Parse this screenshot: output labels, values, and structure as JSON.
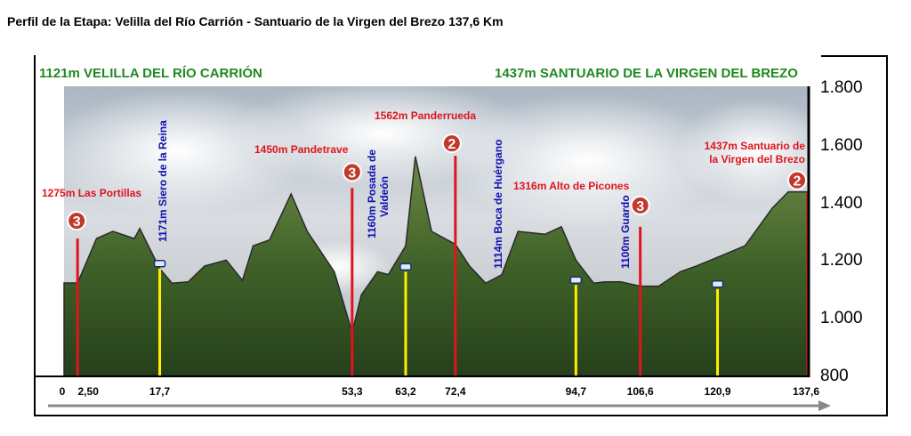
{
  "title": "Perfil de la Etapa: Velilla del Río Carrión - Santuario de la Virgen del Brezo  137,6 Km",
  "start_label": "1121m VELILLA DEL RÍO CARRIÓN",
  "end_label": "1437m SANTUARIO DE LA VIRGEN DEL BREZO",
  "colors": {
    "header_green": "#1f8a1f",
    "climb_red": "#e0141e",
    "place_yellow": "#ffee00",
    "label_red": "#e0141e",
    "label_blue": "#1010b0",
    "badge_red": "#c0392b"
  },
  "chart_data": {
    "type": "area",
    "title": "Perfil de la Etapa: Velilla del Río Carrión - Santuario de la Virgen del Brezo  137,6 Km",
    "xlabel": "",
    "ylabel": "",
    "xlim": [
      0,
      137.6
    ],
    "ylim": [
      800,
      1800
    ],
    "grid": false,
    "x_tick_labels": [
      "0",
      "2,50",
      "17,7",
      "53,3",
      "63,2",
      "72,4",
      "94,7",
      "106,6",
      "120,9",
      "137,6"
    ],
    "x_tick_values": [
      0,
      2.5,
      17.7,
      53.3,
      63.2,
      72.4,
      94.7,
      106.6,
      120.9,
      137.6
    ],
    "y_tick_labels": [
      "1.800",
      "1.600",
      "1.400",
      "1.200",
      "1.000",
      "800"
    ],
    "y_tick_values": [
      1800,
      1600,
      1400,
      1200,
      1000,
      800
    ],
    "profile": {
      "x": [
        0,
        2.5,
        6,
        9,
        13,
        14,
        17.7,
        20,
        23,
        26,
        30,
        33,
        35,
        38,
        42,
        45,
        50,
        53.3,
        55,
        58,
        60,
        63.2,
        65,
        68,
        72.4,
        75,
        78,
        81,
        84,
        89,
        92,
        94.7,
        98,
        100,
        103,
        106.6,
        110,
        114,
        117,
        120.9,
        126,
        131,
        134,
        137.6
      ],
      "elevation": [
        1121,
        1121,
        1275,
        1300,
        1275,
        1310,
        1171,
        1120,
        1125,
        1180,
        1200,
        1130,
        1250,
        1270,
        1430,
        1300,
        1160,
        950,
        1080,
        1160,
        1150,
        1250,
        1560,
        1300,
        1255,
        1180,
        1120,
        1150,
        1300,
        1290,
        1316,
        1200,
        1120,
        1125,
        1125,
        1110,
        1110,
        1160,
        1180,
        1210,
        1250,
        1380,
        1437,
        1437
      ]
    },
    "markers": [
      {
        "label": "1275m Las Portillas",
        "x": 2.5,
        "elevation": 1275,
        "kind": "climb",
        "category": "3"
      },
      {
        "label": "1171m  Siero de la Reina",
        "x": 17.7,
        "elevation": 1171,
        "kind": "place"
      },
      {
        "label": "1450m Pandetrave",
        "x": 53.3,
        "elevation": 1450,
        "kind": "climb",
        "category": "3"
      },
      {
        "label": "1160m Posada de Valdeón",
        "x": 63.2,
        "elevation": 1160,
        "kind": "place"
      },
      {
        "label": "1562m Panderrueda",
        "x": 72.4,
        "elevation": 1562,
        "kind": "climb",
        "category": "2"
      },
      {
        "label": "1114m   Boca de Huérgano",
        "x": 94.7,
        "elevation": 1114,
        "kind": "place"
      },
      {
        "label": "1316m  Alto de Picones",
        "x": 106.6,
        "elevation": 1316,
        "kind": "climb",
        "category": "3"
      },
      {
        "label": "1100m Guardo",
        "x": 120.9,
        "elevation": 1100,
        "kind": "place"
      },
      {
        "label": "1437m Santuario de la Virgen del Brezo",
        "x": 137.6,
        "elevation": 1437,
        "kind": "climb",
        "category": "2"
      }
    ]
  }
}
